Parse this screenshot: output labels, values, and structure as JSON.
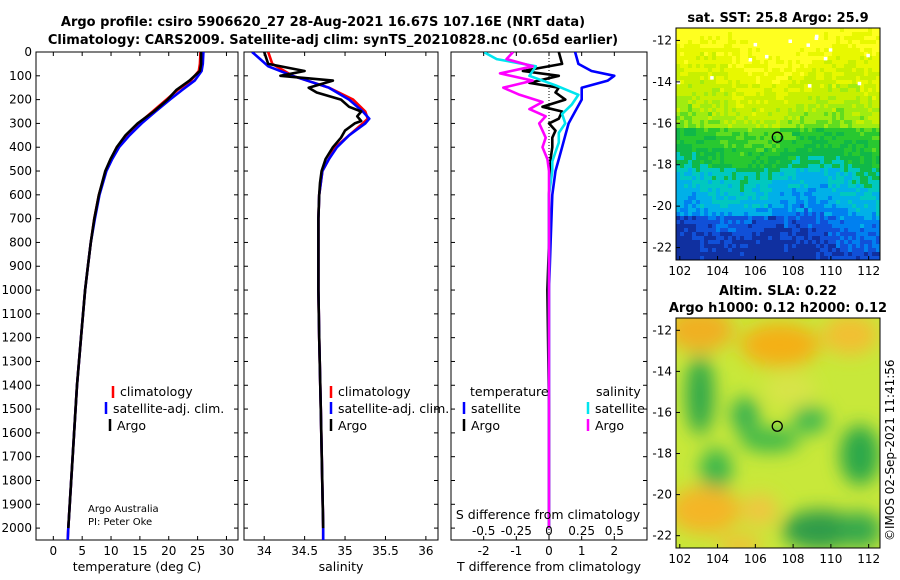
{
  "header": {
    "line1": "Argo profile: csiro 5906620_27 28-Aug-2021 16.67S 107.16E (NRT data)",
    "line2": "Climatology: CARS2009. Satellite-adj clim: synTS_20210828.nc (0.65d earlier)"
  },
  "colors": {
    "climatology": "#ff0000",
    "satellite": "#0000ff",
    "argo": "#000000",
    "sat_salinity": "#00e5ee",
    "argo_salinity": "#ff00ff"
  },
  "credit": {
    "line1": "Argo Australia",
    "line2": "PI: Peter Oke"
  },
  "footer_stamp": "©IMOS 02-Sep-2021 11:41:56",
  "chart_data": [
    {
      "id": "temperature-profile",
      "type": "line",
      "xlabel": "temperature (deg C)",
      "ylabel": "",
      "xlim": [
        -3,
        32
      ],
      "ylim": [
        2050,
        0
      ],
      "xticks": [
        0,
        5,
        10,
        15,
        20,
        25,
        30
      ],
      "yticks": [
        0,
        100,
        200,
        300,
        400,
        500,
        600,
        700,
        800,
        900,
        1000,
        1100,
        1200,
        1300,
        1400,
        1500,
        1600,
        1700,
        1800,
        1900,
        2000
      ],
      "legend": [
        "climatology",
        "satellite-adj. clim.",
        "Argo"
      ],
      "series": [
        {
          "name": "climatology",
          "color": "#ff0000",
          "depth": [
            0,
            50,
            80,
            120,
            160,
            200,
            250,
            300,
            350,
            400,
            450,
            500,
            600,
            700,
            800,
            900,
            1000,
            1200,
            1400,
            1600,
            1800,
            2000,
            2050
          ],
          "values": [
            25.5,
            25.4,
            25.2,
            23.8,
            21.5,
            19.6,
            17.2,
            14.8,
            12.8,
            11.0,
            10.0,
            9.1,
            7.9,
            7.1,
            6.5,
            6.0,
            5.5,
            4.8,
            4.1,
            3.6,
            3.1,
            2.6,
            2.5
          ]
        },
        {
          "name": "satellite-adj. clim.",
          "color": "#0000ff",
          "depth": [
            0,
            50,
            80,
            120,
            160,
            200,
            250,
            300,
            350,
            400,
            450,
            500,
            600,
            700,
            800,
            900,
            1000,
            1200,
            1400,
            1600,
            1800,
            2000,
            2050
          ],
          "values": [
            26.0,
            25.9,
            25.7,
            24.5,
            22.3,
            20.2,
            17.7,
            15.3,
            13.2,
            11.4,
            10.2,
            9.2,
            8.0,
            7.2,
            6.5,
            6.0,
            5.5,
            4.8,
            4.1,
            3.6,
            3.1,
            2.6,
            2.5
          ]
        },
        {
          "name": "Argo",
          "color": "#000000",
          "depth": [
            0,
            50,
            80,
            120,
            160,
            200,
            250,
            300,
            350,
            400,
            450,
            500,
            600,
            700,
            800,
            900,
            1000,
            1200,
            1400,
            1600,
            1800,
            2000
          ],
          "values": [
            25.6,
            25.6,
            25.4,
            23.6,
            21.3,
            19.8,
            17.4,
            14.6,
            12.5,
            11.0,
            9.9,
            9.0,
            7.9,
            7.1,
            6.5,
            6.0,
            5.5,
            4.8,
            4.1,
            3.6,
            3.1,
            2.6
          ]
        }
      ]
    },
    {
      "id": "salinity-profile",
      "type": "line",
      "xlabel": "salinity",
      "ylabel": "",
      "xlim": [
        33.75,
        36.15
      ],
      "ylim": [
        2050,
        0
      ],
      "xticks": [
        34,
        34.5,
        35,
        35.5,
        36
      ],
      "legend": [
        "climatology",
        "satellite-adj. clim.",
        "Argo"
      ],
      "series": [
        {
          "name": "climatology",
          "color": "#ff0000",
          "depth": [
            0,
            50,
            100,
            150,
            200,
            250,
            280,
            300,
            350,
            400,
            450,
            500,
            550,
            600,
            700,
            800,
            1000,
            1200,
            1500,
            2000,
            2050
          ],
          "values": [
            34.05,
            34.1,
            34.35,
            34.8,
            35.1,
            35.25,
            35.28,
            35.22,
            35.05,
            34.88,
            34.8,
            34.72,
            34.7,
            34.68,
            34.67,
            34.67,
            34.67,
            34.68,
            34.7,
            34.73,
            34.73
          ]
        },
        {
          "name": "satellite-adj. clim.",
          "color": "#0000ff",
          "depth": [
            0,
            30,
            60,
            100,
            150,
            200,
            250,
            280,
            300,
            350,
            400,
            450,
            500,
            550,
            600,
            700,
            800,
            1000,
            1200,
            1500,
            2000,
            2050
          ],
          "values": [
            33.85,
            33.95,
            34.05,
            34.35,
            34.8,
            35.05,
            35.22,
            35.3,
            35.25,
            35.05,
            34.9,
            34.8,
            34.72,
            34.7,
            34.68,
            34.67,
            34.67,
            34.67,
            34.68,
            34.7,
            34.73,
            34.73
          ]
        },
        {
          "name": "Argo",
          "color": "#000000",
          "depth": [
            0,
            50,
            80,
            100,
            120,
            150,
            170,
            200,
            230,
            250,
            270,
            290,
            300,
            330,
            360,
            400,
            450,
            500,
            550,
            600,
            700,
            800,
            1000,
            1200,
            1500,
            2000
          ],
          "values": [
            34.0,
            34.05,
            34.5,
            34.2,
            34.85,
            34.55,
            34.65,
            34.95,
            35.05,
            35.2,
            35.15,
            35.2,
            35.12,
            35.0,
            34.95,
            34.85,
            34.76,
            34.71,
            34.69,
            34.68,
            34.67,
            34.67,
            34.67,
            34.68,
            34.7,
            34.73
          ]
        }
      ]
    },
    {
      "id": "difference-profile",
      "type": "line",
      "xlabel": "T difference from climatology",
      "xlabel_top": "S difference from climatology",
      "xlim": [
        -3,
        3
      ],
      "ylim": [
        2050,
        0
      ],
      "xticks": [
        -2,
        -1,
        0,
        1,
        2
      ],
      "secondary_xticks": [
        "-0.5",
        "-0.25",
        "0",
        "0.25",
        "0.5"
      ],
      "legend_groups": {
        "temperature": [
          "satellite",
          "Argo"
        ],
        "salinity": [
          "satellite",
          "Argo"
        ]
      },
      "series": [
        {
          "name": "temperature satellite",
          "color": "#0000ff",
          "depth": [
            0,
            50,
            80,
            100,
            120,
            150,
            200,
            250,
            300,
            350,
            400,
            450,
            500,
            600,
            800,
            1000,
            1500,
            2000
          ],
          "values": [
            0.8,
            0.9,
            1.3,
            2.0,
            1.8,
            1.0,
            1.0,
            0.8,
            0.6,
            0.5,
            0.4,
            0.3,
            0.2,
            0.1,
            0.05,
            0.0,
            0.0,
            0.0
          ]
        },
        {
          "name": "temperature Argo",
          "color": "#000000",
          "depth": [
            0,
            50,
            80,
            100,
            130,
            150,
            170,
            200,
            230,
            250,
            280,
            300,
            330,
            360,
            400,
            450,
            500,
            600,
            800,
            1000,
            1500,
            2000
          ],
          "values": [
            0.3,
            0.4,
            -0.8,
            0.3,
            -0.6,
            0.3,
            0.2,
            0.5,
            -0.2,
            0.4,
            0.3,
            0.0,
            0.2,
            0.1,
            0.1,
            0.05,
            0.05,
            0.0,
            0.0,
            -0.05,
            0.0,
            0.0
          ]
        },
        {
          "name": "salinity satellite",
          "color": "#00e5ee",
          "depth": [
            0,
            30,
            60,
            100,
            140,
            180,
            220,
            260,
            300,
            340,
            380,
            420,
            460,
            500,
            600,
            800,
            1000,
            1500,
            2000
          ],
          "values": [
            -2.0,
            -1.6,
            -0.4,
            -0.6,
            0.2,
            0.9,
            0.7,
            0.4,
            0.5,
            0.3,
            0.3,
            0.2,
            0.1,
            0.1,
            0.0,
            0.0,
            0.0,
            0.0,
            0.0
          ]
        },
        {
          "name": "salinity Argo",
          "color": "#ff00ff",
          "depth": [
            0,
            30,
            60,
            90,
            120,
            150,
            180,
            210,
            240,
            270,
            300,
            330,
            360,
            400,
            450,
            500,
            600,
            800,
            1000,
            1500,
            2000
          ],
          "values": [
            -1.1,
            -1.3,
            -0.5,
            -1.5,
            -0.5,
            -1.4,
            -0.9,
            -0.2,
            -0.6,
            -0.1,
            -0.3,
            -0.2,
            -0.1,
            -0.2,
            -0.05,
            0.0,
            0.0,
            0.0,
            0.0,
            0.0,
            0.0
          ]
        }
      ]
    },
    {
      "id": "sst-map",
      "type": "heatmap",
      "title": "sat. SST: 25.8 Argo: 25.9",
      "xlim": [
        101.8,
        112.6
      ],
      "ylim": [
        -22.6,
        -11.4
      ],
      "xticks": [
        102,
        104,
        106,
        108,
        110,
        112
      ],
      "yticks": [
        -12,
        -14,
        -16,
        -18,
        -20,
        -22
      ],
      "marker": {
        "lon": 107.16,
        "lat": -16.67
      }
    },
    {
      "id": "sla-map",
      "type": "heatmap",
      "title": "Altim. SLA: 0.22",
      "subtitle": "Argo h1000: 0.12 h2000: 0.12",
      "xlim": [
        101.8,
        112.6
      ],
      "ylim": [
        -22.6,
        -11.4
      ],
      "xticks": [
        102,
        104,
        106,
        108,
        110,
        112
      ],
      "yticks": [
        -12,
        -14,
        -16,
        -18,
        -20,
        -22
      ],
      "marker": {
        "lon": 107.16,
        "lat": -16.67
      }
    }
  ]
}
